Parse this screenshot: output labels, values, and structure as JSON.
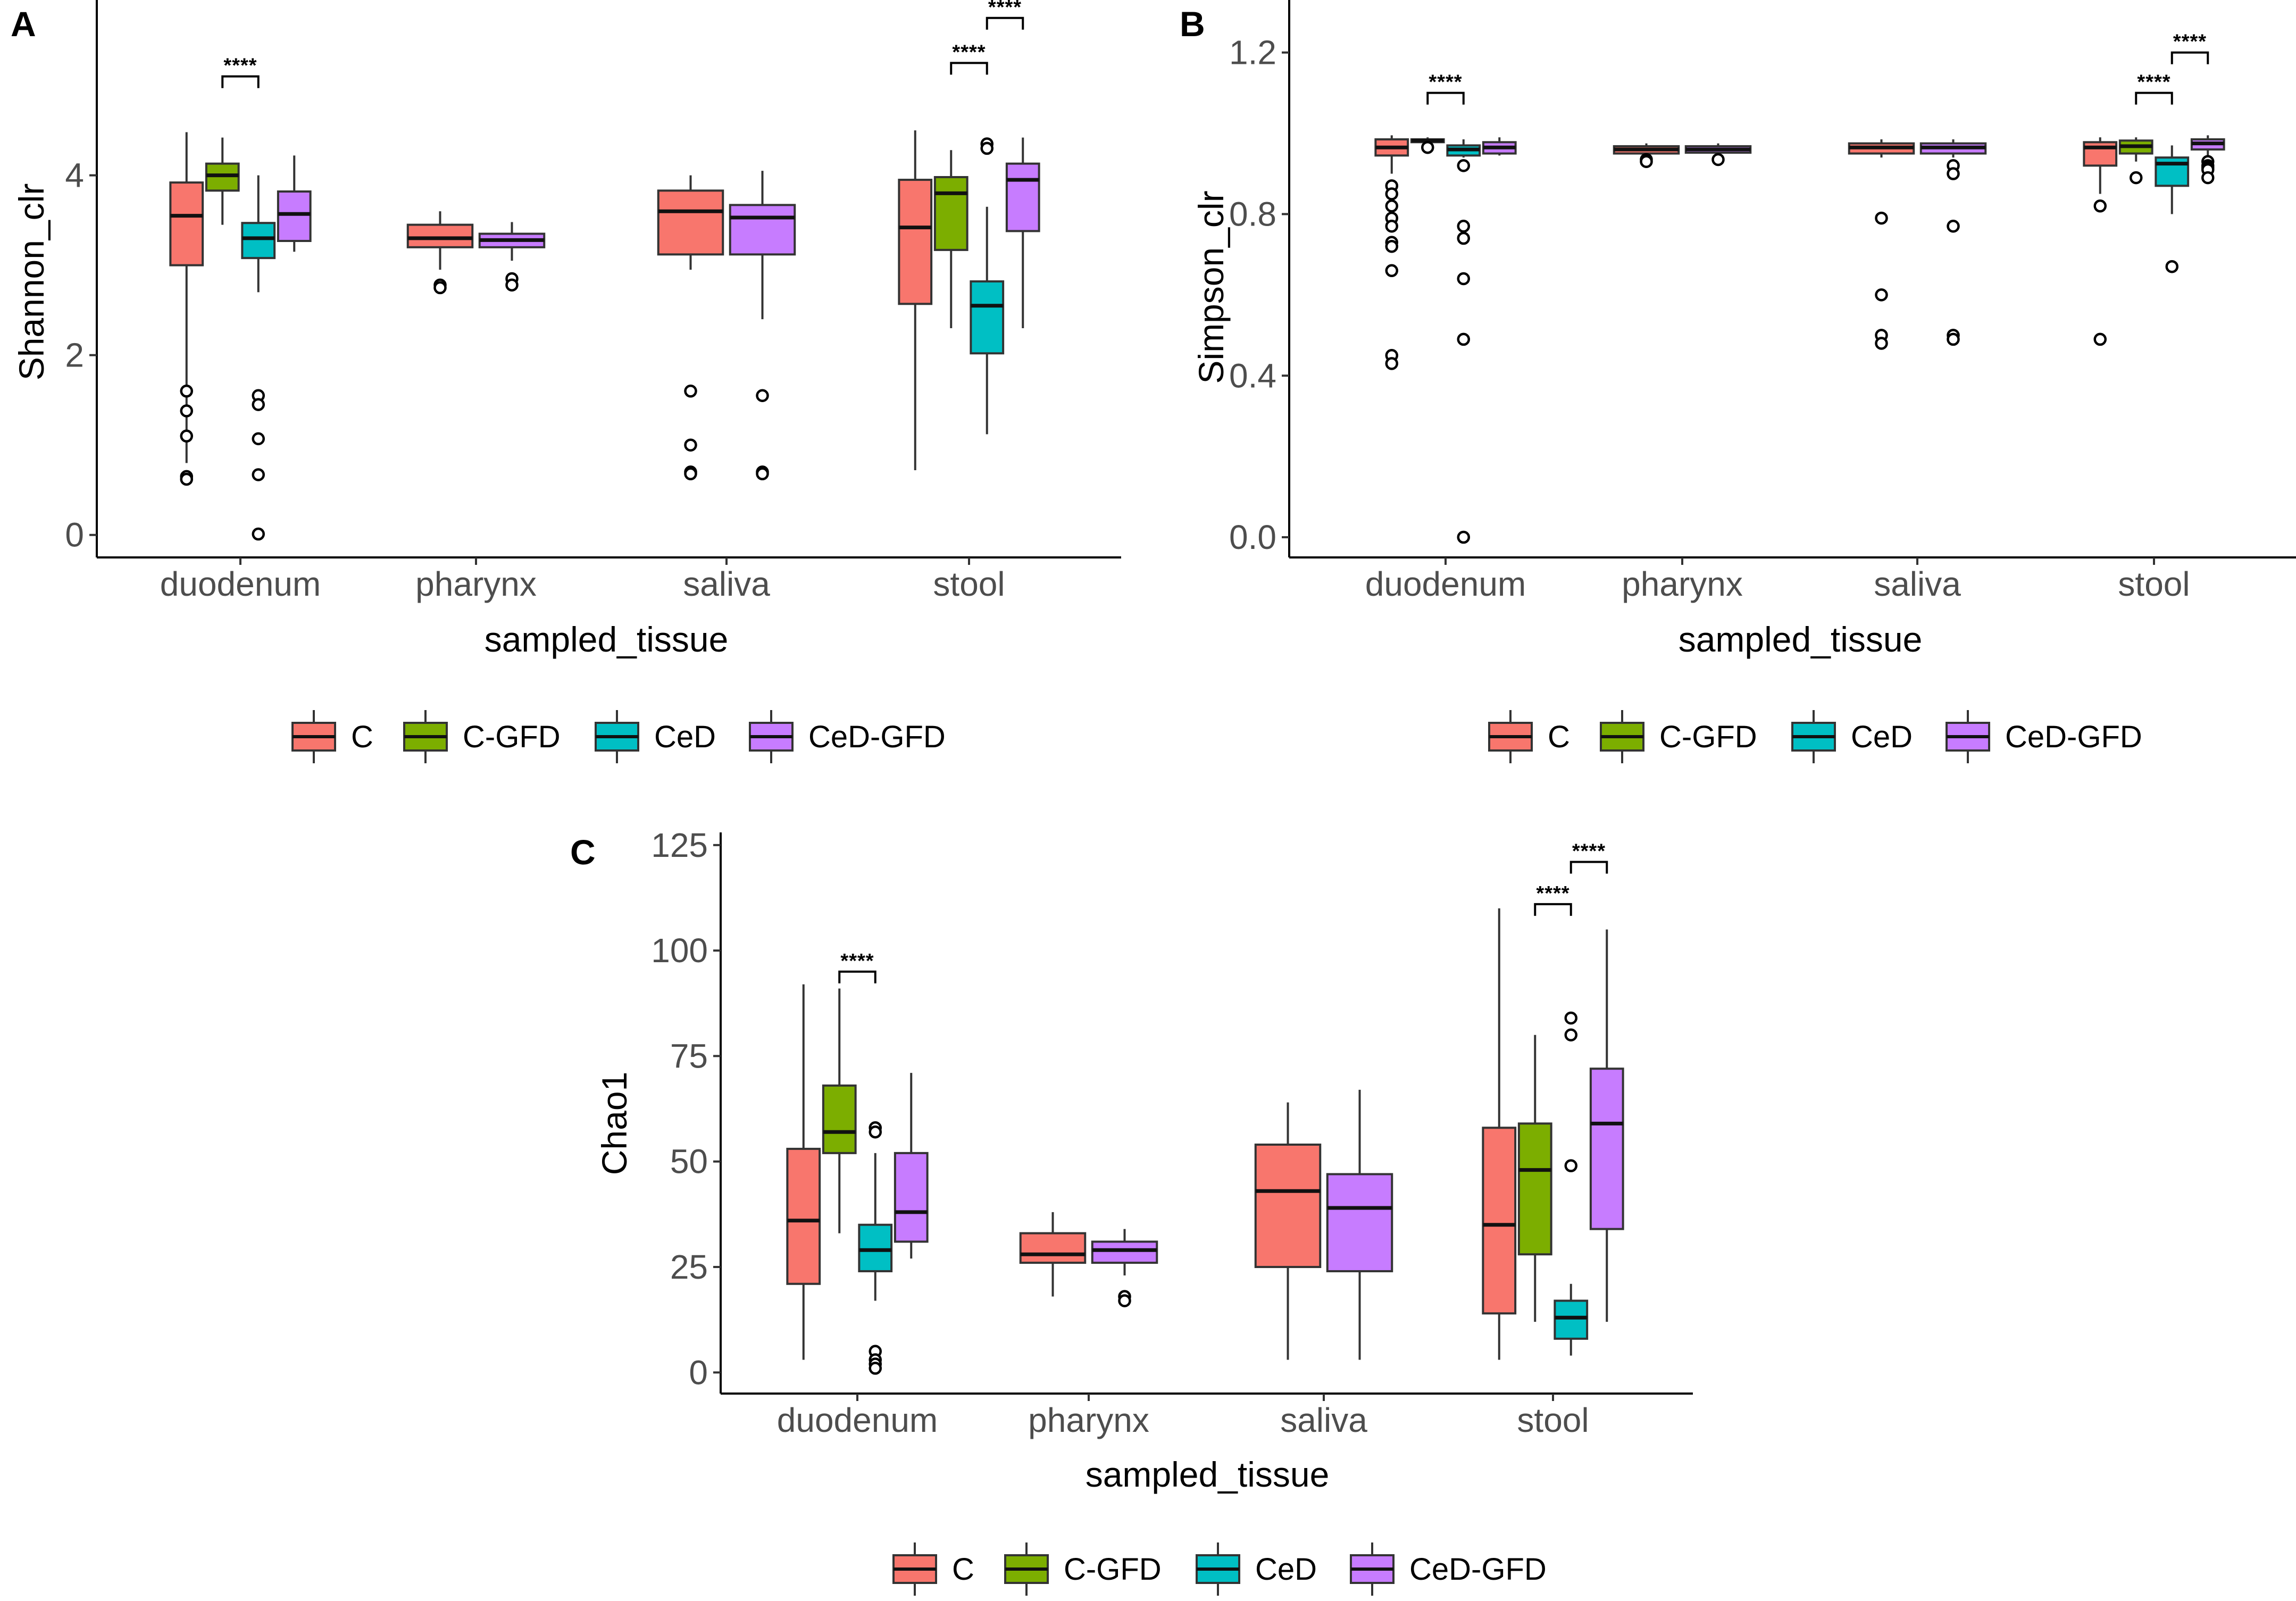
{
  "chart_data": [
    {
      "type": "boxplot",
      "panel": "A",
      "xlabel": "sampled_tissue",
      "ylabel": "Shannon_clr",
      "ylim": [
        -0.25,
        5.95
      ],
      "yticks": [
        0,
        2,
        4
      ],
      "categories": [
        "duodenum",
        "pharynx",
        "saliva",
        "stool"
      ],
      "legend": {
        "position": "bottom",
        "groups": [
          "C",
          "C-GFD",
          "CeD",
          "CeD-GFD"
        ]
      },
      "colors": {
        "C": "#F8766D",
        "C-GFD": "#7CAE00",
        "CeD": "#00BFC4",
        "CeD-GFD": "#C77CFF"
      },
      "boxes": [
        {
          "category": "duodenum",
          "group": "C",
          "slot": 0,
          "n": 4,
          "whisker_low": 0.8,
          "q1": 3.0,
          "median": 3.55,
          "q3": 3.92,
          "whisker_high": 4.48,
          "outliers": [
            1.6,
            1.38,
            1.1,
            0.65,
            0.62
          ]
        },
        {
          "category": "duodenum",
          "group": "C-GFD",
          "slot": 1,
          "n": 4,
          "whisker_low": 3.45,
          "q1": 3.83,
          "median": 4.0,
          "q3": 4.13,
          "whisker_high": 4.42,
          "outliers": []
        },
        {
          "category": "duodenum",
          "group": "CeD",
          "slot": 2,
          "n": 4,
          "whisker_low": 2.7,
          "q1": 3.08,
          "median": 3.3,
          "q3": 3.47,
          "whisker_high": 4.0,
          "outliers": [
            1.55,
            1.45,
            1.07,
            0.67,
            0.01
          ]
        },
        {
          "category": "duodenum",
          "group": "CeD-GFD",
          "slot": 3,
          "n": 4,
          "whisker_low": 3.15,
          "q1": 3.27,
          "median": 3.57,
          "q3": 3.82,
          "whisker_high": 4.22,
          "outliers": []
        },
        {
          "category": "pharynx",
          "group": "C",
          "slot": 0,
          "n": 2,
          "whisker_low": 2.95,
          "q1": 3.2,
          "median": 3.3,
          "q3": 3.45,
          "whisker_high": 3.6,
          "outliers": [
            2.78,
            2.75
          ]
        },
        {
          "category": "pharynx",
          "group": "CeD-GFD",
          "slot": 1,
          "n": 2,
          "whisker_low": 3.05,
          "q1": 3.2,
          "median": 3.28,
          "q3": 3.35,
          "whisker_high": 3.48,
          "outliers": [
            2.85,
            2.78
          ]
        },
        {
          "category": "saliva",
          "group": "C",
          "slot": 0,
          "n": 2,
          "whisker_low": 2.95,
          "q1": 3.12,
          "median": 3.6,
          "q3": 3.83,
          "whisker_high": 4.0,
          "outliers": [
            1.6,
            1.0,
            0.7,
            0.68
          ]
        },
        {
          "category": "saliva",
          "group": "CeD-GFD",
          "slot": 1,
          "n": 2,
          "whisker_low": 2.4,
          "q1": 3.12,
          "median": 3.53,
          "q3": 3.67,
          "whisker_high": 4.05,
          "outliers": [
            1.55,
            0.7,
            0.68
          ]
        },
        {
          "category": "stool",
          "group": "C",
          "slot": 0,
          "n": 4,
          "whisker_low": 0.72,
          "q1": 2.57,
          "median": 3.42,
          "q3": 3.95,
          "whisker_high": 4.5,
          "outliers": []
        },
        {
          "category": "stool",
          "group": "C-GFD",
          "slot": 1,
          "n": 4,
          "whisker_low": 2.3,
          "q1": 3.17,
          "median": 3.8,
          "q3": 3.98,
          "whisker_high": 4.28,
          "outliers": []
        },
        {
          "category": "stool",
          "group": "CeD",
          "slot": 2,
          "n": 4,
          "whisker_low": 1.12,
          "q1": 2.02,
          "median": 2.55,
          "q3": 2.82,
          "whisker_high": 3.65,
          "outliers": [
            4.35,
            4.3
          ]
        },
        {
          "category": "stool",
          "group": "CeD-GFD",
          "slot": 3,
          "n": 4,
          "whisker_low": 2.3,
          "q1": 3.38,
          "median": 3.95,
          "q3": 4.13,
          "whisker_high": 4.42,
          "outliers": []
        }
      ],
      "significance": [
        {
          "category": "duodenum",
          "from_slot": 1,
          "to_slot": 2,
          "y": 5.1,
          "label": "****"
        },
        {
          "category": "stool",
          "from_slot": 1,
          "to_slot": 2,
          "y": 5.25,
          "label": "****"
        },
        {
          "category": "stool",
          "from_slot": 2,
          "to_slot": 3,
          "y": 5.75,
          "label": "****"
        }
      ]
    },
    {
      "type": "boxplot",
      "panel": "B",
      "xlabel": "sampled_tissue",
      "ylabel": "Simpson_clr",
      "ylim": [
        -0.05,
        1.33
      ],
      "yticks": [
        0.0,
        0.4,
        0.8,
        1.2
      ],
      "ytick_labels": [
        "0.0",
        "0.4",
        "0.8",
        "1.2"
      ],
      "categories": [
        "duodenum",
        "pharynx",
        "saliva",
        "stool"
      ],
      "legend": {
        "position": "bottom",
        "groups": [
          "C",
          "C-GFD",
          "CeD",
          "CeD-GFD"
        ]
      },
      "colors": {
        "C": "#F8766D",
        "C-GFD": "#7CAE00",
        "CeD": "#00BFC4",
        "CeD-GFD": "#C77CFF"
      },
      "boxes": [
        {
          "category": "duodenum",
          "group": "C",
          "slot": 0,
          "n": 4,
          "whisker_low": 0.9,
          "q1": 0.945,
          "median": 0.965,
          "q3": 0.985,
          "whisker_high": 0.995,
          "outliers": [
            0.87,
            0.85,
            0.82,
            0.79,
            0.77,
            0.73,
            0.72,
            0.66,
            0.45,
            0.43
          ]
        },
        {
          "category": "duodenum",
          "group": "C-GFD",
          "slot": 1,
          "n": 4,
          "whisker_low": 0.975,
          "q1": 0.978,
          "median": 0.982,
          "q3": 0.985,
          "whisker_high": 0.99,
          "outliers": [
            0.965
          ]
        },
        {
          "category": "duodenum",
          "group": "CeD",
          "slot": 2,
          "n": 4,
          "whisker_low": 0.94,
          "q1": 0.945,
          "median": 0.96,
          "q3": 0.97,
          "whisker_high": 0.985,
          "outliers": [
            0.92,
            0.77,
            0.74,
            0.64,
            0.49,
            0.0
          ]
        },
        {
          "category": "duodenum",
          "group": "CeD-GFD",
          "slot": 3,
          "n": 4,
          "whisker_low": 0.945,
          "q1": 0.95,
          "median": 0.965,
          "q3": 0.978,
          "whisker_high": 0.99,
          "outliers": []
        },
        {
          "category": "pharynx",
          "group": "C",
          "slot": 0,
          "n": 2,
          "whisker_low": 0.945,
          "q1": 0.95,
          "median": 0.96,
          "q3": 0.968,
          "whisker_high": 0.975,
          "outliers": [
            0.935,
            0.93
          ]
        },
        {
          "category": "pharynx",
          "group": "CeD-GFD",
          "slot": 1,
          "n": 2,
          "whisker_low": 0.948,
          "q1": 0.952,
          "median": 0.96,
          "q3": 0.968,
          "whisker_high": 0.975,
          "outliers": [
            0.935
          ]
        },
        {
          "category": "saliva",
          "group": "C",
          "slot": 0,
          "n": 2,
          "whisker_low": 0.94,
          "q1": 0.95,
          "median": 0.965,
          "q3": 0.975,
          "whisker_high": 0.985,
          "outliers": [
            0.79,
            0.6,
            0.5,
            0.48
          ]
        },
        {
          "category": "saliva",
          "group": "CeD-GFD",
          "slot": 1,
          "n": 2,
          "whisker_low": 0.94,
          "q1": 0.95,
          "median": 0.965,
          "q3": 0.975,
          "whisker_high": 0.985,
          "outliers": [
            0.92,
            0.9,
            0.77,
            0.5,
            0.49
          ]
        },
        {
          "category": "stool",
          "group": "C",
          "slot": 0,
          "n": 4,
          "whisker_low": 0.85,
          "q1": 0.92,
          "median": 0.965,
          "q3": 0.978,
          "whisker_high": 0.99,
          "outliers": [
            0.82,
            0.49
          ]
        },
        {
          "category": "stool",
          "group": "C-GFD",
          "slot": 1,
          "n": 4,
          "whisker_low": 0.93,
          "q1": 0.95,
          "median": 0.968,
          "q3": 0.982,
          "whisker_high": 0.99,
          "outliers": [
            0.89
          ]
        },
        {
          "category": "stool",
          "group": "CeD",
          "slot": 2,
          "n": 4,
          "whisker_low": 0.8,
          "q1": 0.87,
          "median": 0.925,
          "q3": 0.94,
          "whisker_high": 0.97,
          "outliers": [
            0.67
          ]
        },
        {
          "category": "stool",
          "group": "CeD-GFD",
          "slot": 3,
          "n": 4,
          "whisker_low": 0.94,
          "q1": 0.96,
          "median": 0.975,
          "q3": 0.985,
          "whisker_high": 0.995,
          "outliers": [
            0.93,
            0.92,
            0.915,
            0.91,
            0.89
          ]
        }
      ],
      "significance": [
        {
          "category": "duodenum",
          "from_slot": 1,
          "to_slot": 2,
          "y": 1.1,
          "label": "****"
        },
        {
          "category": "stool",
          "from_slot": 1,
          "to_slot": 2,
          "y": 1.1,
          "label": "****"
        },
        {
          "category": "stool",
          "from_slot": 2,
          "to_slot": 3,
          "y": 1.2,
          "label": "****"
        }
      ]
    },
    {
      "type": "boxplot",
      "panel": "C",
      "xlabel": "sampled_tissue",
      "ylabel": "Chao1",
      "ylim": [
        -5,
        128
      ],
      "yticks": [
        0,
        25,
        50,
        75,
        100,
        125
      ],
      "categories": [
        "duodenum",
        "pharynx",
        "saliva",
        "stool"
      ],
      "legend": {
        "position": "bottom",
        "groups": [
          "C",
          "C-GFD",
          "CeD",
          "CeD-GFD"
        ]
      },
      "colors": {
        "C": "#F8766D",
        "C-GFD": "#7CAE00",
        "CeD": "#00BFC4",
        "CeD-GFD": "#C77CFF"
      },
      "boxes": [
        {
          "category": "duodenum",
          "group": "C",
          "slot": 0,
          "n": 4,
          "whisker_low": 3,
          "q1": 21,
          "median": 36,
          "q3": 53,
          "whisker_high": 92,
          "outliers": []
        },
        {
          "category": "duodenum",
          "group": "C-GFD",
          "slot": 1,
          "n": 4,
          "whisker_low": 33,
          "q1": 52,
          "median": 57,
          "q3": 68,
          "whisker_high": 91,
          "outliers": []
        },
        {
          "category": "duodenum",
          "group": "CeD",
          "slot": 2,
          "n": 4,
          "whisker_low": 17,
          "q1": 24,
          "median": 29,
          "q3": 35,
          "whisker_high": 52,
          "outliers": [
            58,
            57,
            5,
            3,
            2,
            1
          ]
        },
        {
          "category": "duodenum",
          "group": "CeD-GFD",
          "slot": 3,
          "n": 4,
          "whisker_low": 27,
          "q1": 31,
          "median": 38,
          "q3": 52,
          "whisker_high": 71,
          "outliers": []
        },
        {
          "category": "pharynx",
          "group": "C",
          "slot": 0,
          "n": 2,
          "whisker_low": 18,
          "q1": 26,
          "median": 28,
          "q3": 33,
          "whisker_high": 38,
          "outliers": []
        },
        {
          "category": "pharynx",
          "group": "CeD-GFD",
          "slot": 1,
          "n": 2,
          "whisker_low": 23,
          "q1": 26,
          "median": 29,
          "q3": 31,
          "whisker_high": 34,
          "outliers": [
            18,
            17
          ]
        },
        {
          "category": "saliva",
          "group": "C",
          "slot": 0,
          "n": 2,
          "whisker_low": 3,
          "q1": 25,
          "median": 43,
          "q3": 54,
          "whisker_high": 64,
          "outliers": []
        },
        {
          "category": "saliva",
          "group": "CeD-GFD",
          "slot": 1,
          "n": 2,
          "whisker_low": 3,
          "q1": 24,
          "median": 39,
          "q3": 47,
          "whisker_high": 67,
          "outliers": []
        },
        {
          "category": "stool",
          "group": "C",
          "slot": 0,
          "n": 4,
          "whisker_low": 3,
          "q1": 14,
          "median": 35,
          "q3": 58,
          "whisker_high": 110,
          "outliers": []
        },
        {
          "category": "stool",
          "group": "C-GFD",
          "slot": 1,
          "n": 4,
          "whisker_low": 12,
          "q1": 28,
          "median": 48,
          "q3": 59,
          "whisker_high": 80,
          "outliers": []
        },
        {
          "category": "stool",
          "group": "CeD",
          "slot": 2,
          "n": 4,
          "whisker_low": 4,
          "q1": 8,
          "median": 13,
          "q3": 17,
          "whisker_high": 21,
          "outliers": [
            84,
            80,
            49
          ]
        },
        {
          "category": "stool",
          "group": "CeD-GFD",
          "slot": 3,
          "n": 4,
          "whisker_low": 12,
          "q1": 34,
          "median": 59,
          "q3": 72,
          "whisker_high": 105,
          "outliers": []
        }
      ],
      "significance": [
        {
          "category": "duodenum",
          "from_slot": 1,
          "to_slot": 2,
          "y": 95,
          "label": "****"
        },
        {
          "category": "stool",
          "from_slot": 1,
          "to_slot": 2,
          "y": 111,
          "label": "****"
        },
        {
          "category": "stool",
          "from_slot": 2,
          "to_slot": 3,
          "y": 121,
          "label": "****"
        }
      ]
    }
  ]
}
